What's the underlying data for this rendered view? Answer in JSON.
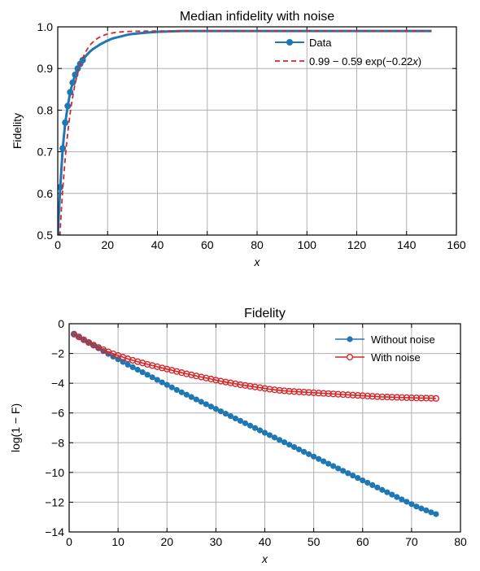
{
  "chart_data": [
    {
      "type": "line",
      "title": "Median infidelity with noise",
      "xlabel": "x",
      "ylabel": "Fidelity",
      "xlim": [
        0,
        160
      ],
      "ylim": [
        0.5,
        1.0
      ],
      "xticks": [
        "0",
        "20",
        "40",
        "60",
        "80",
        "100",
        "120",
        "140",
        "160"
      ],
      "yticks": [
        "0.5",
        "0.6",
        "0.7",
        "0.8",
        "0.9",
        "1.0"
      ],
      "grid": true,
      "legend_position": "top-right",
      "series": [
        {
          "name": "Data",
          "style": "solid-with-markers",
          "color": "#1f77b4",
          "x": [
            0,
            1,
            2,
            3,
            4,
            5,
            6,
            7,
            8,
            9,
            10,
            11,
            12,
            13,
            14,
            15,
            16,
            17,
            18,
            19,
            20,
            22,
            24,
            26,
            28,
            30,
            35,
            40,
            45,
            50,
            60,
            70,
            80,
            90,
            100,
            110,
            120,
            130,
            140,
            150
          ],
          "y": [
            0.5,
            0.615,
            0.708,
            0.77,
            0.81,
            0.843,
            0.866,
            0.885,
            0.9,
            0.911,
            0.92,
            0.928,
            0.935,
            0.941,
            0.946,
            0.95,
            0.954,
            0.958,
            0.961,
            0.964,
            0.967,
            0.972,
            0.975,
            0.978,
            0.981,
            0.983,
            0.986,
            0.988,
            0.989,
            0.99,
            0.99,
            0.99,
            0.99,
            0.99,
            0.99,
            0.99,
            0.99,
            0.99,
            0.99,
            0.99
          ]
        },
        {
          "name": "0.99 − 0.59 exp(−0.22x)",
          "legend_label_parts": [
            "0.99 − 0.59 exp(−0.22",
            "x",
            ")"
          ],
          "style": "dashed",
          "color": "#d62728",
          "model": {
            "a": 0.99,
            "b": 0.59,
            "k": 0.22
          },
          "x_range": [
            0,
            150
          ]
        }
      ]
    },
    {
      "type": "line",
      "title": "Fidelity",
      "xlabel": "x",
      "ylabel": "log(1 − F)",
      "xlim": [
        0,
        80
      ],
      "ylim": [
        -14,
        0
      ],
      "xticks": [
        "0",
        "10",
        "20",
        "30",
        "40",
        "50",
        "60",
        "70",
        "80"
      ],
      "yticks": [
        "0",
        "−2",
        "−4",
        "−6",
        "−8",
        "−10",
        "−12",
        "−14"
      ],
      "grid": true,
      "legend_position": "top-right",
      "series": [
        {
          "name": "Without noise",
          "color": "#1f77b4",
          "marker": "filled-circle",
          "x_range": [
            1,
            75
          ],
          "y": [
            -0.7,
            -0.89,
            -1.08,
            -1.27,
            -1.46,
            -1.65,
            -1.84,
            -2.03,
            -2.21,
            -2.39,
            -2.57,
            -2.75,
            -2.92,
            -3.09,
            -3.26,
            -3.43,
            -3.6,
            -3.77,
            -3.94,
            -4.11,
            -4.28,
            -4.45,
            -4.61,
            -4.77,
            -4.93,
            -5.09,
            -5.25,
            -5.41,
            -5.57,
            -5.73,
            -5.89,
            -6.05,
            -6.21,
            -6.37,
            -6.53,
            -6.69,
            -6.85,
            -7.01,
            -7.17,
            -7.33,
            -7.49,
            -7.65,
            -7.81,
            -7.97,
            -8.13,
            -8.29,
            -8.45,
            -8.61,
            -8.77,
            -8.93,
            -9.09,
            -9.25,
            -9.41,
            -9.57,
            -9.73,
            -9.89,
            -10.05,
            -10.21,
            -10.37,
            -10.53,
            -10.69,
            -10.85,
            -11.01,
            -11.17,
            -11.33,
            -11.49,
            -11.65,
            -11.81,
            -11.97,
            -12.13,
            -12.29,
            -12.42,
            -12.55,
            -12.68,
            -12.8
          ]
        },
        {
          "name": "With noise",
          "color": "#d62728",
          "marker": "open-circle",
          "x_range": [
            1,
            75
          ],
          "y": [
            -0.7,
            -0.89,
            -1.08,
            -1.26,
            -1.44,
            -1.6,
            -1.75,
            -1.89,
            -2.02,
            -2.14,
            -2.25,
            -2.36,
            -2.46,
            -2.55,
            -2.64,
            -2.73,
            -2.81,
            -2.89,
            -2.97,
            -3.05,
            -3.13,
            -3.21,
            -3.29,
            -3.37,
            -3.44,
            -3.51,
            -3.58,
            -3.65,
            -3.72,
            -3.79,
            -3.86,
            -3.92,
            -3.98,
            -4.04,
            -4.1,
            -4.15,
            -4.2,
            -4.25,
            -4.3,
            -4.35,
            -4.4,
            -4.44,
            -4.48,
            -4.51,
            -4.54,
            -4.56,
            -4.58,
            -4.6,
            -4.62,
            -4.64,
            -4.66,
            -4.68,
            -4.7,
            -4.72,
            -4.74,
            -4.76,
            -4.78,
            -4.8,
            -4.82,
            -4.84,
            -4.86,
            -4.88,
            -4.9,
            -4.92,
            -4.93,
            -4.94,
            -4.95,
            -4.96,
            -4.97,
            -4.98,
            -4.99,
            -5.0,
            -5.0,
            -5.01,
            -5.02
          ]
        }
      ]
    }
  ]
}
